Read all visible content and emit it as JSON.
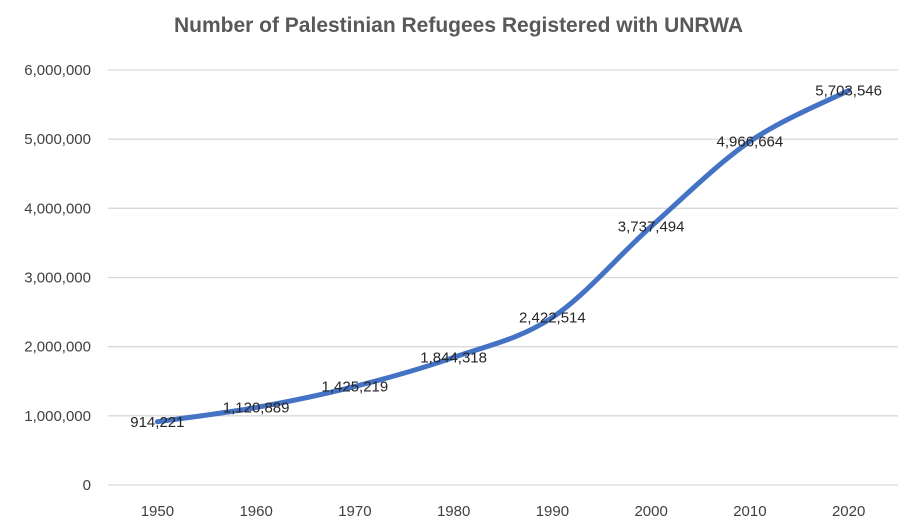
{
  "chart_data": {
    "type": "line",
    "title": "Number of Palestinian Refugees Registered with UNRWA",
    "xlabel": "",
    "ylabel": "",
    "categories": [
      "1950",
      "1960",
      "1970",
      "1980",
      "1990",
      "2000",
      "2010",
      "2020"
    ],
    "series": [
      {
        "values": [
          914221,
          1120889,
          1425219,
          1844318,
          2422514,
          3737494,
          4966664,
          5703546
        ],
        "labels": [
          "914,221",
          "1,120,889",
          "1,425,219",
          "1,844,318",
          "2,422,514",
          "3,737,494",
          "4,966,664",
          "5,703,546"
        ],
        "color": "#4472c4"
      }
    ],
    "ylim": [
      0,
      6000000
    ],
    "yticks": [
      0,
      1000000,
      2000000,
      3000000,
      4000000,
      5000000,
      6000000
    ],
    "ytick_labels": [
      "0",
      "1,000,000",
      "2,000,000",
      "3,000,000",
      "4,000,000",
      "5,000,000",
      "6,000,000"
    ],
    "grid": "horizontal",
    "gridline_color": "#d9d9d9",
    "legend": "none"
  }
}
